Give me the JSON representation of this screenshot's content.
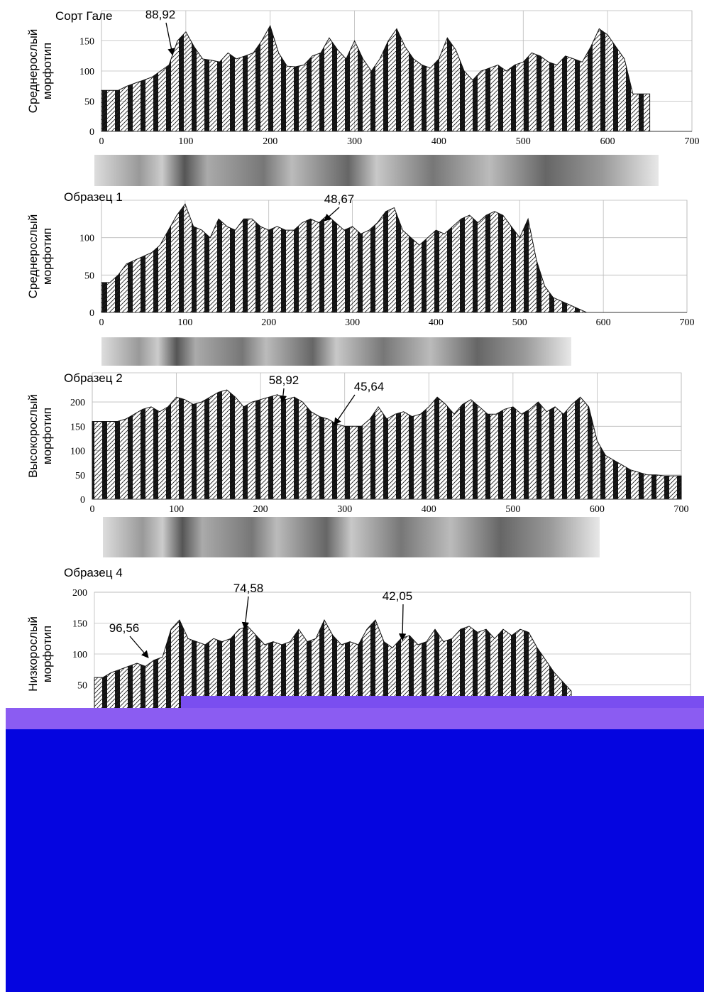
{
  "chart_data": [
    {
      "type": "area",
      "title": "Сорт Гале",
      "ylabel": [
        "Среднерослый",
        "морфотип"
      ],
      "annotations": [
        "88,92"
      ],
      "xlim": [
        0,
        700
      ],
      "xticks": [
        0,
        100,
        200,
        300,
        400,
        500,
        600,
        700
      ],
      "ylim": [
        0,
        200
      ],
      "yticks": [
        0,
        50,
        100,
        150
      ],
      "grid": true,
      "x": [
        0,
        10,
        20,
        30,
        40,
        50,
        60,
        70,
        80,
        90,
        100,
        110,
        120,
        130,
        140,
        150,
        160,
        170,
        180,
        190,
        200,
        210,
        220,
        230,
        240,
        250,
        260,
        270,
        280,
        290,
        300,
        310,
        320,
        330,
        340,
        350,
        360,
        370,
        380,
        390,
        400,
        410,
        420,
        430,
        440,
        450,
        460,
        470,
        480,
        490,
        500,
        510,
        520,
        530,
        540,
        550,
        560,
        570,
        580,
        590,
        600,
        610,
        620,
        630,
        640,
        650
      ],
      "values": [
        68,
        68,
        68,
        75,
        80,
        85,
        90,
        100,
        110,
        150,
        165,
        140,
        120,
        118,
        115,
        130,
        120,
        125,
        130,
        150,
        175,
        130,
        108,
        107,
        110,
        125,
        130,
        155,
        135,
        120,
        150,
        120,
        100,
        120,
        150,
        170,
        140,
        120,
        110,
        105,
        120,
        155,
        135,
        100,
        85,
        100,
        105,
        110,
        100,
        110,
        115,
        130,
        125,
        115,
        110,
        125,
        120,
        115,
        140,
        170,
        160,
        140,
        120,
        62,
        62,
        62
      ]
    },
    {
      "type": "area",
      "title": "Образец 1",
      "ylabel": [
        "Среднерослый",
        "морфотип"
      ],
      "annotations": [
        "48,67"
      ],
      "xlim": [
        0,
        700
      ],
      "xticks": [
        0,
        100,
        200,
        300,
        400,
        500,
        600,
        700
      ],
      "ylim": [
        0,
        150
      ],
      "yticks": [
        0,
        50,
        100
      ],
      "grid": true,
      "x": [
        0,
        10,
        20,
        30,
        40,
        50,
        60,
        70,
        80,
        90,
        100,
        110,
        120,
        130,
        140,
        150,
        160,
        170,
        180,
        190,
        200,
        210,
        220,
        230,
        240,
        250,
        260,
        270,
        280,
        290,
        300,
        310,
        320,
        330,
        340,
        350,
        360,
        370,
        380,
        390,
        400,
        410,
        420,
        430,
        440,
        450,
        460,
        470,
        480,
        490,
        500,
        510,
        520,
        530,
        540,
        550,
        560,
        570,
        580
      ],
      "values": [
        40,
        40,
        50,
        65,
        70,
        75,
        80,
        90,
        110,
        130,
        145,
        115,
        110,
        100,
        125,
        115,
        110,
        125,
        125,
        115,
        110,
        115,
        110,
        110,
        120,
        125,
        120,
        130,
        120,
        110,
        115,
        105,
        110,
        120,
        135,
        140,
        110,
        100,
        90,
        100,
        110,
        105,
        115,
        125,
        130,
        120,
        130,
        135,
        130,
        115,
        100,
        125,
        70,
        35,
        20,
        15,
        10,
        5,
        0
      ]
    },
    {
      "type": "area",
      "title": "Образец 2",
      "ylabel": [
        "Высокорослый",
        "морфотип"
      ],
      "annotations": [
        "58,92",
        "45,64"
      ],
      "xlim": [
        0,
        700
      ],
      "xticks": [
        0,
        100,
        200,
        300,
        400,
        500,
        600,
        700
      ],
      "ylim": [
        0,
        260
      ],
      "yticks": [
        0,
        50,
        100,
        150,
        200
      ],
      "grid": true,
      "x": [
        0,
        10,
        20,
        30,
        40,
        50,
        60,
        70,
        80,
        90,
        100,
        110,
        120,
        130,
        140,
        150,
        160,
        170,
        180,
        190,
        200,
        210,
        220,
        230,
        240,
        250,
        260,
        270,
        280,
        290,
        300,
        310,
        320,
        330,
        340,
        350,
        360,
        370,
        380,
        390,
        400,
        410,
        420,
        430,
        440,
        450,
        460,
        470,
        480,
        490,
        500,
        510,
        520,
        530,
        540,
        550,
        560,
        570,
        580,
        590,
        600,
        610,
        620,
        630,
        640,
        650,
        660,
        670,
        680,
        690,
        700
      ],
      "values": [
        160,
        160,
        160,
        160,
        165,
        175,
        185,
        190,
        180,
        190,
        210,
        205,
        195,
        200,
        210,
        220,
        225,
        210,
        190,
        200,
        205,
        210,
        215,
        205,
        210,
        200,
        180,
        170,
        165,
        155,
        150,
        150,
        150,
        165,
        190,
        165,
        175,
        180,
        170,
        175,
        190,
        210,
        195,
        175,
        195,
        205,
        190,
        175,
        175,
        185,
        190,
        175,
        185,
        200,
        180,
        190,
        175,
        195,
        210,
        190,
        120,
        90,
        80,
        70,
        60,
        55,
        50,
        50,
        48,
        48,
        48
      ]
    },
    {
      "type": "area",
      "title": "Образец 4",
      "ylabel": [
        "Низкорослый",
        "морфотип"
      ],
      "annotations": [
        "96,56",
        "74,58",
        "42,05"
      ],
      "xlim": [
        0,
        700
      ],
      "ylim": [
        0,
        200
      ],
      "yticks": [
        50,
        100,
        150,
        200
      ],
      "grid": true,
      "x": [
        0,
        10,
        20,
        30,
        40,
        50,
        60,
        70,
        80,
        90,
        100,
        110,
        120,
        130,
        140,
        150,
        160,
        170,
        180,
        190,
        200,
        210,
        220,
        230,
        240,
        250,
        260,
        270,
        280,
        290,
        300,
        310,
        320,
        330,
        340,
        350,
        360,
        370,
        380,
        390,
        400,
        410,
        420,
        430,
        440,
        450,
        460,
        470,
        480,
        490,
        500,
        510,
        520,
        530,
        540,
        550,
        560
      ],
      "values": [
        62,
        62,
        70,
        75,
        80,
        85,
        80,
        90,
        95,
        140,
        155,
        125,
        120,
        115,
        125,
        120,
        125,
        140,
        145,
        130,
        115,
        120,
        115,
        120,
        140,
        120,
        125,
        155,
        130,
        115,
        120,
        115,
        140,
        155,
        120,
        110,
        125,
        130,
        115,
        120,
        140,
        120,
        125,
        140,
        145,
        135,
        140,
        125,
        140,
        130,
        140,
        135,
        110,
        90,
        70,
        55,
        40
      ]
    }
  ]
}
